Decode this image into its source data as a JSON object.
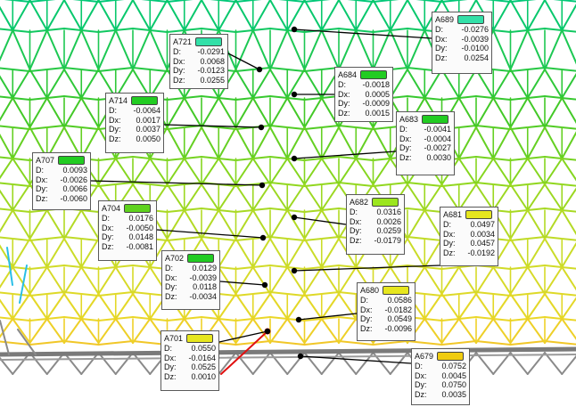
{
  "colors": {
    "background": "#ffffff",
    "leader": "#000000",
    "selected_member": "#e01010",
    "support_steel": "#7a7a7a"
  },
  "tooltips": [
    {
      "id": "A689",
      "D": "-0.0276",
      "Dx": "-0.0039",
      "Dy": "-0.0100",
      "Dz": "0.0254",
      "swatch": "#33e0a8"
    },
    {
      "id": "A721",
      "D": "-0.0291",
      "Dx": "0.0068",
      "Dy": "-0.0123",
      "Dz": "0.0255",
      "swatch": "#33e0a8"
    },
    {
      "id": "A684",
      "D": "-0.0018",
      "Dx": "0.0005",
      "Dy": "-0.0009",
      "Dz": "0.0015",
      "swatch": "#22cc22"
    },
    {
      "id": "A714",
      "D": "-0.0064",
      "Dx": "0.0017",
      "Dy": "0.0037",
      "Dz": "0.0050",
      "swatch": "#22cc22"
    },
    {
      "id": "A683",
      "D": "-0.0041",
      "Dx": "-0.0004",
      "Dy": "-0.0027",
      "Dz": "0.0030",
      "swatch": "#22cc22"
    },
    {
      "id": "A707",
      "D": "0.0093",
      "Dx": "-0.0026",
      "Dy": "0.0066",
      "Dz": "-0.0060",
      "swatch": "#22cc22"
    },
    {
      "id": "A704",
      "D": "0.0176",
      "Dx": "-0.0050",
      "Dy": "0.0148",
      "Dz": "-0.0081",
      "swatch": "#5fd21e"
    },
    {
      "id": "A682",
      "D": "0.0316",
      "Dx": "0.0026",
      "Dy": "0.0259",
      "Dz": "-0.0179",
      "swatch": "#9be61e"
    },
    {
      "id": "A681",
      "D": "0.0497",
      "Dx": "0.0034",
      "Dy": "0.0457",
      "Dz": "-0.0192",
      "swatch": "#e6e61e"
    },
    {
      "id": "A702",
      "D": "0.0129",
      "Dx": "-0.0039",
      "Dy": "0.0118",
      "Dz": "-0.0034",
      "swatch": "#22cc22"
    },
    {
      "id": "A680",
      "D": "0.0586",
      "Dx": "-0.0182",
      "Dy": "0.0549",
      "Dz": "-0.0096",
      "swatch": "#e6e61e"
    },
    {
      "id": "A701",
      "D": "0.0550",
      "Dx": "-0.0164",
      "Dy": "0.0525",
      "Dz": "0.0010",
      "swatch": "#e6e61e"
    },
    {
      "id": "A679",
      "D": "0.0752",
      "Dx": "0.0045",
      "Dy": "0.0750",
      "Dz": "0.0035",
      "swatch": "#f0cc10"
    }
  ]
}
